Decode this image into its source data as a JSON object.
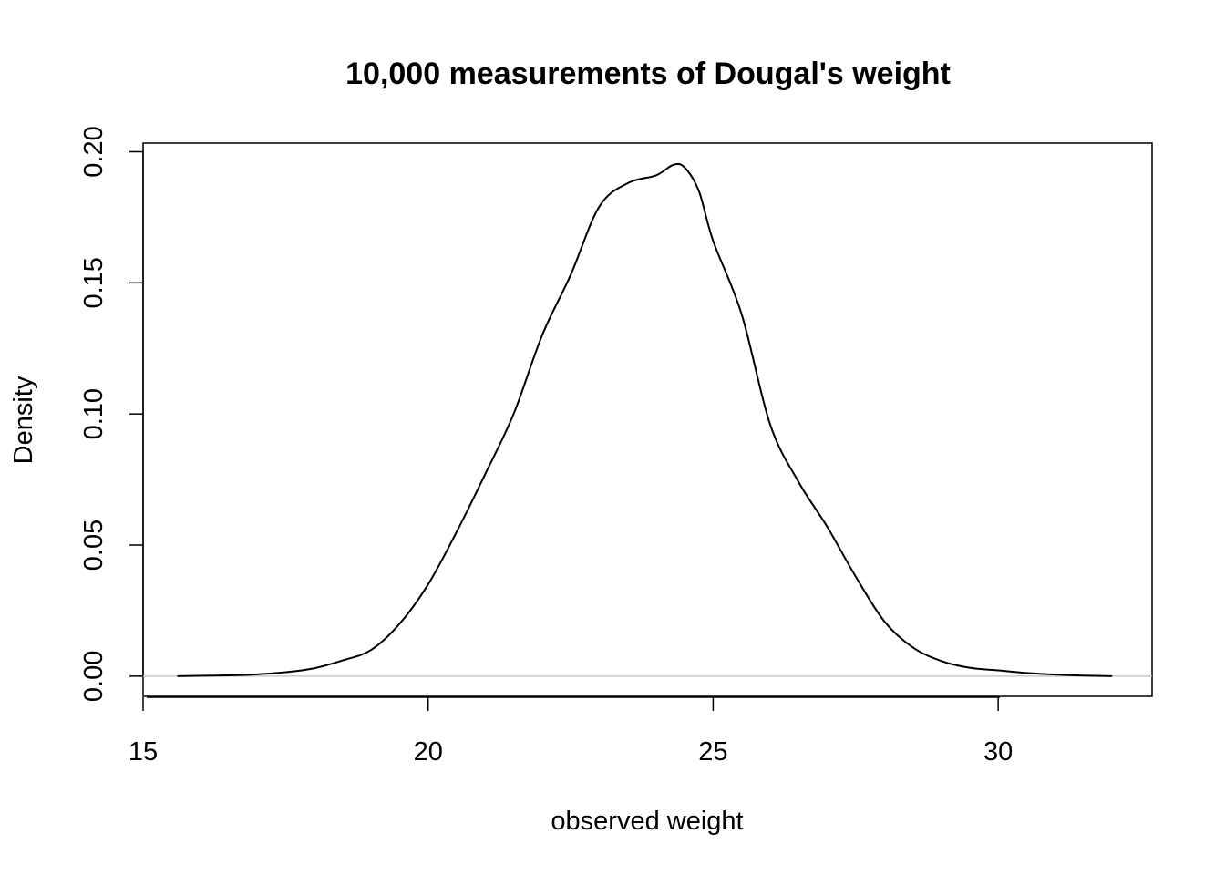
{
  "chart_data": {
    "type": "line",
    "title": "10,000 measurements of Dougal's weight",
    "xlabel": "observed weight",
    "ylabel": "Density",
    "xlim": [
      15,
      32.7
    ],
    "ylim": [
      -0.0077,
      0.2033
    ],
    "x_ticks": [
      "15",
      "20",
      "25",
      "30"
    ],
    "y_ticks": [
      "0.00",
      "0.05",
      "0.10",
      "0.15",
      "0.20"
    ],
    "grid": false,
    "reference_line": {
      "y": 0,
      "color": "#bebebe"
    },
    "series": [
      {
        "color": "#000000",
        "x": [
          15.6,
          16.5,
          17.0,
          17.5,
          18.0,
          18.5,
          19.0,
          19.5,
          20.0,
          20.5,
          21.0,
          21.5,
          22.0,
          22.5,
          23.0,
          23.5,
          24.0,
          24.3,
          24.5,
          24.75,
          25.0,
          25.5,
          26.0,
          26.5,
          27.0,
          27.5,
          28.0,
          28.5,
          29.0,
          29.5,
          30.0,
          30.5,
          31.0,
          31.5,
          32.0
        ],
        "y": [
          0.0,
          0.0003,
          0.0007,
          0.0015,
          0.003,
          0.006,
          0.01,
          0.02,
          0.035,
          0.055,
          0.077,
          0.1,
          0.13,
          0.153,
          0.179,
          0.188,
          0.191,
          0.195,
          0.194,
          0.185,
          0.166,
          0.138,
          0.096,
          0.074,
          0.057,
          0.038,
          0.021,
          0.011,
          0.0058,
          0.0032,
          0.0022,
          0.0012,
          0.0006,
          0.0002,
          0.0
        ]
      }
    ]
  }
}
